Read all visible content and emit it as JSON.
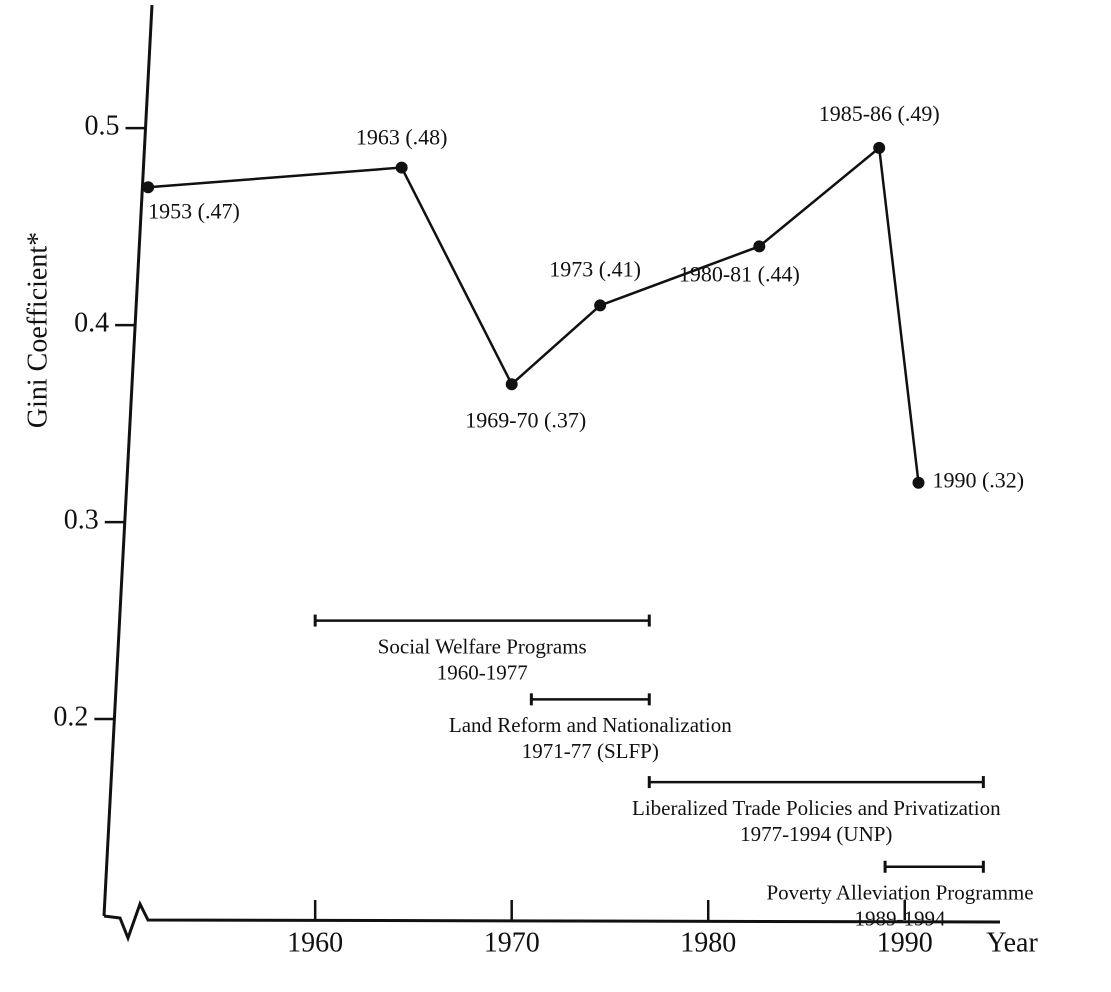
{
  "chart_data": {
    "type": "line",
    "y_label": "Gini Coefficient*",
    "x_label": "Year",
    "x": [
      1951.5,
      1964.4,
      1970,
      1974.5,
      1982.6,
      1988.7,
      1990.7
    ],
    "values": [
      0.47,
      0.48,
      0.37,
      0.41,
      0.44,
      0.49,
      0.32
    ],
    "point_labels": [
      "1953 (.47)",
      "1963 (.48)",
      "1969-70 (.37)",
      "1973 (.41)",
      "1980-81 (.44)",
      "1985-86 (.49)",
      "1990 (.32)"
    ],
    "color": "#111111",
    "xlim": [
      1949,
      1995
    ],
    "xticks": [
      1960,
      1970,
      1980,
      1990
    ],
    "ylim": [
      0.1,
      0.56
    ],
    "yticks": [
      0.2,
      0.3,
      0.4,
      0.5
    ],
    "periods": [
      {
        "name": "Social Welfare Programs",
        "span": "1960-1977",
        "start": 1960,
        "end": 1977,
        "level": 0.25
      },
      {
        "name": "Land Reform and Nationalization",
        "span": "1971-77 (SLFP)",
        "start": 1971,
        "end": 1977,
        "level": 0.21
      },
      {
        "name": "Liberalized Trade Policies and Privatization",
        "span": "1977-1994 (UNP)",
        "start": 1977,
        "end": 1994,
        "level": 0.168
      },
      {
        "name": "Poverty Alleviation Programme",
        "span": "1989-1994",
        "start": 1989,
        "end": 1994,
        "level": 0.125
      }
    ]
  }
}
